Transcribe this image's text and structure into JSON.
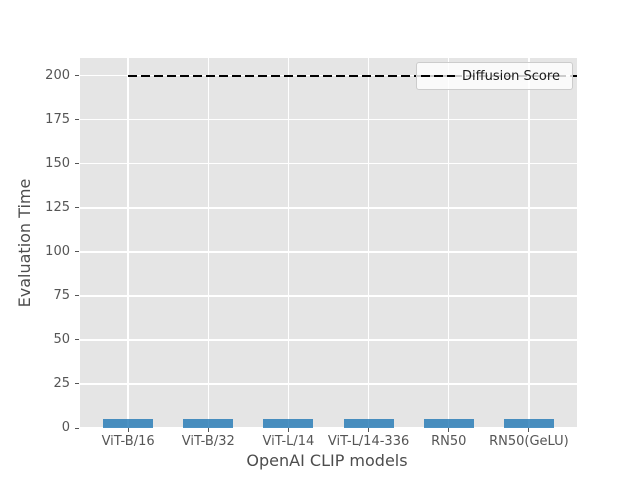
{
  "chart_data": {
    "type": "bar",
    "title": "",
    "xlabel": "OpenAI CLIP models",
    "ylabel": "Evaluation Time",
    "categories": [
      "ViT-B/16",
      "ViT-B/32",
      "ViT-L/14",
      "ViT-L/14-336",
      "RN50",
      "RN50(GeLU)"
    ],
    "values": [
      5,
      5,
      5,
      5,
      5,
      5
    ],
    "overlay_line": {
      "label": "Diffusion Score",
      "value": 200,
      "style": "dashed",
      "color": "#000000"
    },
    "yticks": [
      0,
      25,
      50,
      75,
      100,
      125,
      150,
      175,
      200
    ],
    "ylim": [
      0,
      210
    ],
    "grid": true,
    "legend_position": "upper right",
    "colors": {
      "bar": "#1f77b4",
      "bar_alpha": 0.8,
      "plot_background": "#e5e5e5",
      "gridline": "#ffffff",
      "tick_text": "#555555",
      "axis_label_text": "#4d4d4d",
      "legend_text": "#1a1a1a",
      "legend_border": "#cccccc",
      "figure_background": "#ffffff"
    }
  }
}
